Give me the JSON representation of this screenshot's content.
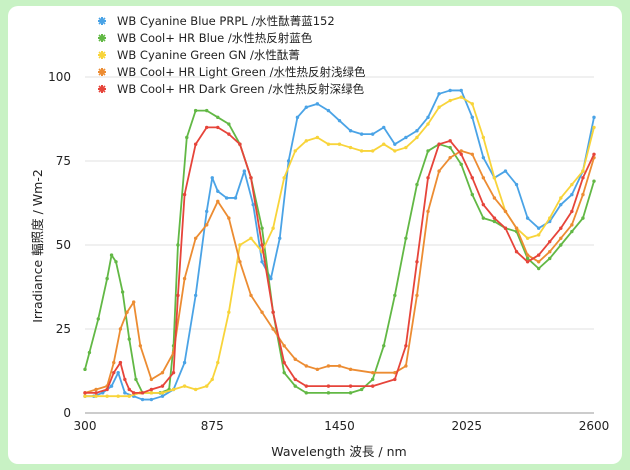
{
  "chart_data": {
    "type": "line",
    "xlabel": "Wavelength 波長 / nm",
    "ylabel": "Irradiance 輻照度 / Wm-2",
    "xlim": [
      300,
      2600
    ],
    "ylim": [
      0,
      100
    ],
    "xticks": [
      300,
      875,
      1450,
      2025,
      2600
    ],
    "yticks": [
      0,
      25,
      50,
      75,
      100
    ],
    "legend_position": "top-left",
    "grid": "horizontal",
    "series": [
      {
        "name": "WB  Cyanine Blue PRPL /水性酞菁蓝152",
        "color": "#4aa3e6",
        "x": [
          300,
          340,
          380,
          420,
          450,
          480,
          520,
          560,
          600,
          650,
          700,
          750,
          800,
          850,
          875,
          900,
          940,
          980,
          1020,
          1060,
          1100,
          1140,
          1180,
          1220,
          1260,
          1300,
          1350,
          1400,
          1450,
          1500,
          1550,
          1600,
          1650,
          1700,
          1750,
          1800,
          1850,
          1900,
          1950,
          2000,
          2050,
          2100,
          2150,
          2200,
          2250,
          2300,
          2350,
          2400,
          2450,
          2500,
          2550,
          2600
        ],
        "y": [
          5,
          5,
          6,
          8,
          12,
          6,
          5,
          4,
          4,
          5,
          7,
          15,
          35,
          60,
          70,
          66,
          64,
          64,
          72,
          62,
          45,
          40,
          52,
          75,
          88,
          91,
          92,
          90,
          87,
          84,
          83,
          83,
          85,
          80,
          82,
          84,
          88,
          95,
          96,
          96,
          88,
          76,
          70,
          72,
          68,
          58,
          55,
          57,
          62,
          65,
          72,
          88
        ]
      },
      {
        "name": "WB Cool+ HR Blue /水性热反射蓝色",
        "color": "#62b845",
        "x": [
          300,
          320,
          360,
          400,
          420,
          440,
          470,
          500,
          530,
          560,
          600,
          640,
          680,
          700,
          720,
          760,
          800,
          850,
          900,
          950,
          1000,
          1050,
          1100,
          1150,
          1200,
          1250,
          1300,
          1400,
          1500,
          1550,
          1600,
          1650,
          1700,
          1750,
          1800,
          1850,
          1900,
          1950,
          2000,
          2050,
          2100,
          2150,
          2200,
          2250,
          2300,
          2350,
          2400,
          2450,
          2500,
          2550,
          2600
        ],
        "y": [
          13,
          18,
          28,
          40,
          47,
          45,
          36,
          22,
          10,
          6,
          6,
          6,
          7,
          20,
          50,
          82,
          90,
          90,
          88,
          86,
          80,
          70,
          55,
          30,
          12,
          8,
          6,
          6,
          6,
          7,
          10,
          20,
          35,
          52,
          68,
          78,
          80,
          79,
          74,
          65,
          58,
          57,
          55,
          54,
          46,
          43,
          46,
          50,
          54,
          58,
          69
        ]
      },
      {
        "name": "WB  Cyanine Green GN /水性酞菁",
        "color": "#f8d43a",
        "x": [
          300,
          350,
          400,
          450,
          500,
          550,
          600,
          650,
          700,
          750,
          800,
          850,
          875,
          900,
          950,
          1000,
          1050,
          1100,
          1150,
          1200,
          1250,
          1300,
          1350,
          1400,
          1450,
          1500,
          1550,
          1600,
          1650,
          1700,
          1750,
          1800,
          1850,
          1900,
          1950,
          2000,
          2050,
          2100,
          2150,
          2200,
          2250,
          2300,
          2350,
          2400,
          2450,
          2500,
          2550,
          2600
        ],
        "y": [
          5,
          5,
          5,
          5,
          5,
          6,
          6,
          6,
          7,
          8,
          7,
          8,
          10,
          15,
          30,
          50,
          52,
          48,
          55,
          70,
          78,
          81,
          82,
          80,
          80,
          79,
          78,
          78,
          80,
          78,
          79,
          82,
          86,
          91,
          93,
          94,
          92,
          82,
          70,
          60,
          55,
          52,
          53,
          58,
          64,
          68,
          72,
          85
        ]
      },
      {
        "name": "WB Cool+ HR Light Green /水性热反射浅绿色",
        "color": "#ec8c32",
        "x": [
          300,
          350,
          400,
          430,
          460,
          490,
          520,
          550,
          600,
          650,
          700,
          750,
          800,
          850,
          900,
          950,
          1000,
          1050,
          1100,
          1150,
          1200,
          1250,
          1300,
          1350,
          1400,
          1450,
          1500,
          1600,
          1700,
          1750,
          1800,
          1850,
          1900,
          1950,
          2000,
          2050,
          2100,
          2150,
          2200,
          2250,
          2300,
          2350,
          2400,
          2450,
          2500,
          2550,
          2600
        ],
        "y": [
          6,
          7,
          8,
          15,
          25,
          30,
          33,
          20,
          10,
          12,
          18,
          40,
          52,
          56,
          63,
          58,
          45,
          35,
          30,
          25,
          20,
          16,
          14,
          13,
          14,
          14,
          13,
          12,
          12,
          14,
          35,
          60,
          72,
          76,
          78,
          77,
          70,
          64,
          60,
          55,
          47,
          45,
          48,
          52,
          56,
          65,
          76
        ]
      },
      {
        "name": "WB Cool+ HR Dark Green /水性热反射深绿色",
        "color": "#e6443a",
        "x": [
          300,
          350,
          400,
          430,
          460,
          480,
          500,
          520,
          560,
          600,
          650,
          700,
          720,
          750,
          800,
          850,
          900,
          950,
          1000,
          1050,
          1100,
          1150,
          1200,
          1250,
          1300,
          1400,
          1500,
          1600,
          1700,
          1750,
          1800,
          1850,
          1900,
          1950,
          2000,
          2050,
          2100,
          2150,
          2200,
          2250,
          2300,
          2350,
          2400,
          2450,
          2500,
          2550,
          2600
        ],
        "y": [
          6,
          6,
          7,
          12,
          15,
          10,
          7,
          6,
          6,
          7,
          8,
          12,
          35,
          65,
          80,
          85,
          85,
          83,
          80,
          70,
          50,
          30,
          15,
          10,
          8,
          8,
          8,
          8,
          10,
          20,
          45,
          70,
          80,
          81,
          77,
          70,
          62,
          58,
          55,
          48,
          45,
          47,
          51,
          55,
          60,
          70,
          77
        ]
      }
    ]
  }
}
